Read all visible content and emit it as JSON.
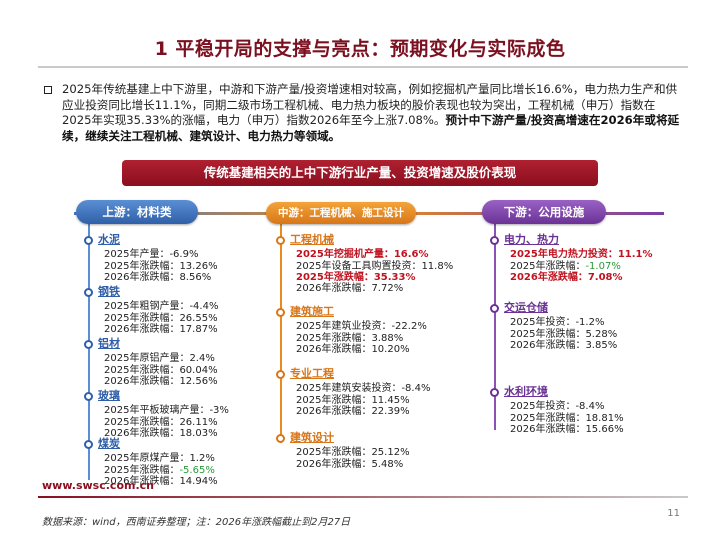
{
  "title": "1 平稳开局的支撑与亮点：预期变化与实际成色",
  "bullet": {
    "text": "2025年传统基建上中下游里，中游和下游产量/投资增速相对较高，例如挖掘机产量同比增长16.6%，电力热力生产和供应业投资同比增长11.1%，同期二级市场工程机械、电力热力板块的股价表现也较为突出，工程机械（申万）指数在2025年实现35.33%的涨幅，电力（申万）指数2026年至今上涨7.08%。",
    "bold": "预计中下游产量/投资高增速在2026年或将延续，继续关注工程机械、建筑设计、电力热力等领域。"
  },
  "banner": "传统基建相关的上中下游行业产量、投资增速及股价表现",
  "stages": {
    "upstream": "上游：材料类",
    "midstream": "中游：工程机械、施工设计",
    "downstream": "下游：公用设施"
  },
  "upstream": {
    "cement": {
      "name": "水泥",
      "l1": "2025年产量：-6.9%",
      "l2": "2025年涨跌幅：13.26%",
      "l3": "2026年涨跌幅：8.56%"
    },
    "steel": {
      "name": "钢铁",
      "l1": "2025年粗钢产量：-4.4%",
      "l2": "2025年涨跌幅：26.55%",
      "l3": "2026年涨跌幅：17.87%"
    },
    "aluminum": {
      "name": "铝材",
      "l1": "2025年原铝产量：2.4%",
      "l2": "2025年涨跌幅：60.04%",
      "l3": "2026年涨跌幅：12.56%"
    },
    "glass": {
      "name": "玻璃",
      "l1": "2025年平板玻璃产量：-3%",
      "l2": "2025年涨跌幅：26.11%",
      "l3": "2026年涨跌幅：18.03%"
    },
    "coal": {
      "name": "煤炭",
      "l1": "2025年原煤产量：1.2%",
      "l2_prefix": "2025年涨跌幅：",
      "l2_value": "-5.65%",
      "l3": "2026年涨跌幅：14.94%"
    }
  },
  "midstream": {
    "machinery": {
      "name": "工程机械",
      "l1": "2025年挖掘机产量：16.6%",
      "l2": "2025年设备工具购置投资：11.8%",
      "l3": "2025年涨跌幅：35.33%",
      "l4": "2026年涨跌幅：7.72%"
    },
    "construction": {
      "name": "建筑施工",
      "l1": "2025年建筑业投资：-22.2%",
      "l2": "2025年涨跌幅：3.88%",
      "l3": "2026年涨跌幅：10.20%"
    },
    "engineering": {
      "name": "专业工程",
      "l1": "2025年建筑安装投资：-8.4%",
      "l2": "2025年涨跌幅：11.45%",
      "l3": "2026年涨跌幅：22.39%"
    },
    "design": {
      "name": "建筑设计",
      "l1": "2025年涨跌幅：25.12%",
      "l2": "2026年涨跌幅：5.48%"
    }
  },
  "downstream": {
    "power": {
      "name": "电力、热力",
      "l1": "2025年电力热力投资：11.1%",
      "l2_prefix": "2025年涨跌幅：",
      "l2_value": "-1.07%",
      "l3": "2026年涨跌幅：7.08%"
    },
    "transport": {
      "name": "交运仓储",
      "l1": "2025年投资：-1.2%",
      "l2": "2025年涨跌幅：5.28%",
      "l3": "2026年涨跌幅：3.85%"
    },
    "water": {
      "name": "水利环境",
      "l1": "2025年投资：-8.4%",
      "l2": "2025年涨跌幅：18.81%",
      "l3": "2026年涨跌幅：15.66%"
    }
  },
  "footer": {
    "url": "www.swsc.com.cn",
    "source": "数据来源：wind，西南证券整理；注：2026年涨跌幅截止到2月27日",
    "page": "11"
  },
  "colors": {
    "brand": "#8a0f1f",
    "upstream": "#2f5fa8",
    "midstream": "#d8761a",
    "downstream": "#6a3294",
    "highlight": "#c0121f",
    "negative_green": "#2a9a3a"
  }
}
